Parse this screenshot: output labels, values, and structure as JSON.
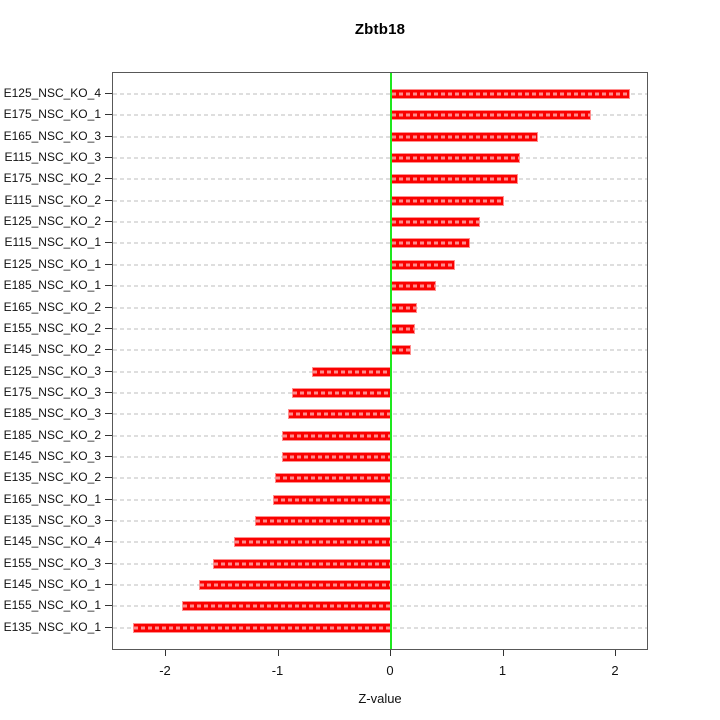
{
  "title": "Zbtb18",
  "chart_data": {
    "type": "bar",
    "orientation": "horizontal",
    "title": "Zbtb18",
    "xlabel": "Z-value",
    "categories": [
      "E125_NSC_KO_4",
      "E175_NSC_KO_1",
      "E165_NSC_KO_3",
      "E115_NSC_KO_3",
      "E175_NSC_KO_2",
      "E115_NSC_KO_2",
      "E125_NSC_KO_2",
      "E115_NSC_KO_1",
      "E125_NSC_KO_1",
      "E185_NSC_KO_1",
      "E165_NSC_KO_2",
      "E155_NSC_KO_2",
      "E145_NSC_KO_2",
      "E125_NSC_KO_3",
      "E175_NSC_KO_3",
      "E185_NSC_KO_3",
      "E185_NSC_KO_2",
      "E145_NSC_KO_3",
      "E135_NSC_KO_2",
      "E165_NSC_KO_1",
      "E135_NSC_KO_3",
      "E145_NSC_KO_4",
      "E155_NSC_KO_3",
      "E145_NSC_KO_1",
      "E155_NSC_KO_1",
      "E135_NSC_KO_1"
    ],
    "values": [
      2.12,
      1.78,
      1.31,
      1.15,
      1.13,
      1.0,
      0.79,
      0.7,
      0.57,
      0.4,
      0.23,
      0.21,
      0.18,
      -0.7,
      -0.88,
      -0.92,
      -0.97,
      -0.97,
      -1.03,
      -1.05,
      -1.21,
      -1.4,
      -1.58,
      -1.71,
      -1.86,
      -2.29
    ],
    "xticks": [
      "-2",
      "-1",
      "0",
      "1",
      "2"
    ],
    "xtick_values": [
      -2,
      -1,
      0,
      1,
      2
    ],
    "xlim": [
      -2.47,
      2.29
    ],
    "grid": "horizontal dashed line per category",
    "legend": "none",
    "zero_line": true,
    "colors": {
      "bar": "#fa0100",
      "bar_border": "#ff8f8f",
      "zero_line": "#1ee81e",
      "gridline": "#dedede",
      "box": "#585858",
      "text": "#111111",
      "background": "#ffffff"
    }
  }
}
